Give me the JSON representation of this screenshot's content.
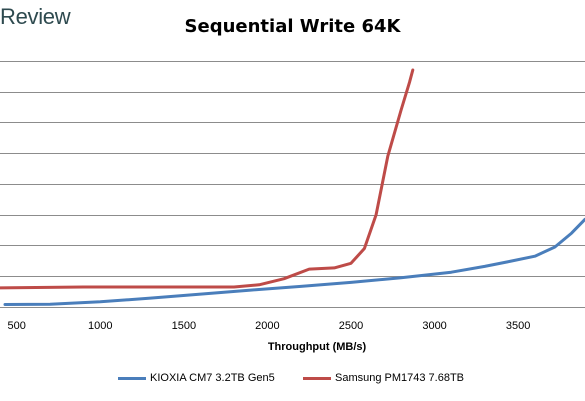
{
  "brand": {
    "logo_text": "Review"
  },
  "chart_data": {
    "type": "line",
    "title": "Sequential Write 64K",
    "xlabel": "Throughput (MB/s)",
    "ylabel": "",
    "xlim": [
      400,
      3900
    ],
    "ylim": [
      0,
      9
    ],
    "x_ticks": [
      500,
      1000,
      1500,
      2000,
      2500,
      3000,
      3500
    ],
    "y_gridlines": [
      1,
      2,
      3,
      4,
      5,
      6,
      7,
      8
    ],
    "grid": true,
    "legend_position": "bottom",
    "series": [
      {
        "name": "KIOXIA CM7 3.2TB Gen5",
        "color": "#4a7ebb",
        "points": [
          [
            430,
            0.08
          ],
          [
            700,
            0.09
          ],
          [
            1000,
            0.17
          ],
          [
            1300,
            0.29
          ],
          [
            1600,
            0.42
          ],
          [
            1900,
            0.55
          ],
          [
            2200,
            0.67
          ],
          [
            2500,
            0.8
          ],
          [
            2800,
            0.95
          ],
          [
            3100,
            1.13
          ],
          [
            3300,
            1.32
          ],
          [
            3450,
            1.48
          ],
          [
            3600,
            1.65
          ],
          [
            3720,
            1.95
          ],
          [
            3820,
            2.4
          ],
          [
            3900,
            2.85
          ]
        ]
      },
      {
        "name": "Samsung PM1743 7.68TB",
        "color": "#be4b48",
        "points": [
          [
            400,
            0.62
          ],
          [
            900,
            0.65
          ],
          [
            1300,
            0.65
          ],
          [
            1800,
            0.65
          ],
          [
            1950,
            0.72
          ],
          [
            2100,
            0.92
          ],
          [
            2250,
            1.23
          ],
          [
            2400,
            1.27
          ],
          [
            2500,
            1.42
          ],
          [
            2580,
            1.9
          ],
          [
            2650,
            3.0
          ],
          [
            2720,
            4.9
          ],
          [
            2800,
            6.4
          ],
          [
            2850,
            7.3
          ],
          [
            2870,
            7.7
          ]
        ]
      }
    ]
  }
}
